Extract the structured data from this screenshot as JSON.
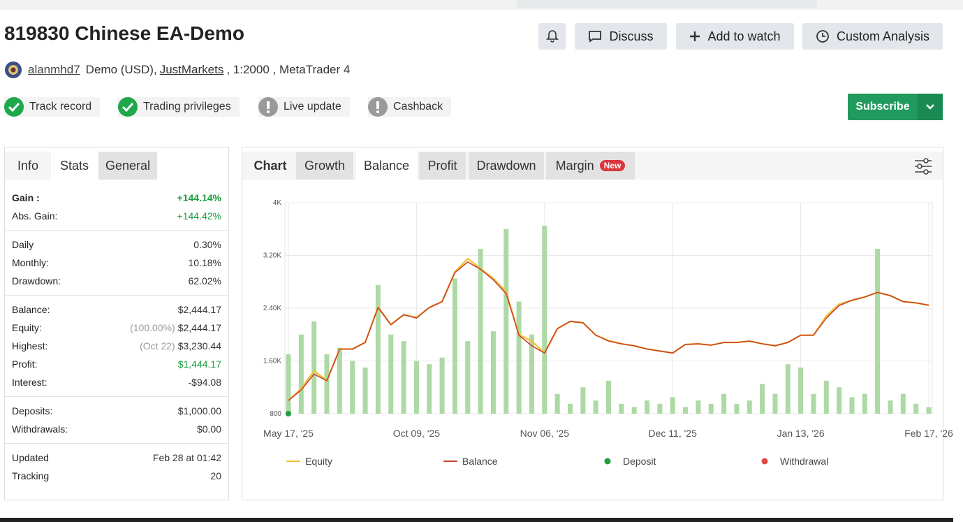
{
  "header": {
    "title": "819830 Chinese EA-Demo",
    "buttons": [
      "Discuss",
      "Add to watch",
      "Custom Analysis"
    ]
  },
  "account": {
    "user": "alanmhd7",
    "type": "Demo (USD),",
    "broker": "JustMarkets",
    "details": ", 1:2000 , MetaTrader 4"
  },
  "badges": [
    {
      "label": "Track record",
      "status": "ok"
    },
    {
      "label": "Trading privileges",
      "status": "ok"
    },
    {
      "label": "Live update",
      "status": "warn"
    },
    {
      "label": "Cashback",
      "status": "warn"
    }
  ],
  "subscribe": "Subscribe",
  "stats": {
    "tabs": [
      "Info",
      "Stats",
      "General"
    ],
    "groups": [
      [
        {
          "label": "Gain :",
          "value": "+144.14%",
          "color": "#1a9e3f"
        },
        {
          "label": "Abs. Gain:",
          "value": "+144.42%",
          "color": "#1a9e3f"
        }
      ],
      [
        {
          "label": "Daily",
          "value": "0.30%"
        },
        {
          "label": "Monthly:",
          "value": "10.18%"
        },
        {
          "label": "Drawdown:",
          "value": "62.02%"
        }
      ],
      [
        {
          "label": "Balance:",
          "value": "$2,444.17"
        },
        {
          "label": "Equity:",
          "note": "(100.00%)",
          "value": "$2,444.17"
        },
        {
          "label": "Highest:",
          "note": "(Oct 22)",
          "value": "$3,230.44"
        },
        {
          "label": "Profit:",
          "value": "$1,444.17",
          "color": "#1a9e3f"
        },
        {
          "label": "Interest:",
          "value": "-$94.08"
        }
      ],
      [
        {
          "label": "Deposits:",
          "value": "$1,000.00"
        },
        {
          "label": "Withdrawals:",
          "value": "$0.00"
        }
      ],
      [
        {
          "label": "Updated",
          "value": "Feb 28 at 01:42"
        },
        {
          "label": "Tracking",
          "value": "20"
        }
      ]
    ]
  },
  "chart_tabs": {
    "tabs": [
      "Chart",
      "Growth",
      "Balance",
      "Profit",
      "Drawdown",
      "Margin"
    ],
    "new_badge": "New"
  },
  "chart_data": {
    "type": "line",
    "categories": [
      "May 17, '25",
      null,
      null,
      null,
      null,
      null,
      null,
      null,
      null,
      null,
      "Oct 09, '25",
      null,
      null,
      null,
      null,
      null,
      null,
      null,
      null,
      null,
      "Nov 06, '25",
      null,
      null,
      null,
      null,
      null,
      null,
      null,
      null,
      null,
      "Dec 11, '25",
      null,
      null,
      null,
      null,
      null,
      null,
      null,
      null,
      null,
      "Jan 13, '26",
      null,
      null,
      null,
      null,
      null,
      null,
      null,
      null,
      null,
      "Feb 17, '26"
    ],
    "ylim": [
      800,
      4000
    ],
    "yticks": [
      800,
      {
        "value": 1600,
        "label": "1.60K"
      },
      {
        "value": 2400,
        "label": "2.40K"
      },
      {
        "value": 3200,
        "label": "3.20K"
      },
      {
        "value": 4000,
        "label": "4K"
      }
    ],
    "grid": true,
    "series": [
      {
        "name": "Equity",
        "type": "line",
        "color": "#f2c23a",
        "values": [
          1000,
          1180,
          1450,
          1300,
          1780,
          1780,
          1880,
          2420,
          2150,
          2300,
          2260,
          2410,
          2500,
          2950,
          3150,
          3000,
          2850,
          2650,
          2000,
          1900,
          1720,
          2090,
          2200,
          2180,
          1990,
          1910,
          1860,
          1830,
          1780,
          1750,
          1720,
          1850,
          1860,
          1840,
          1880,
          1880,
          1900,
          1860,
          1830,
          1880,
          1990,
          1990,
          2280,
          2460,
          2520,
          2570,
          2640,
          2590,
          2500,
          2480,
          2444
        ]
      },
      {
        "name": "Balance",
        "type": "line",
        "color": "#c8442a",
        "values": [
          1000,
          1160,
          1400,
          1300,
          1780,
          1780,
          1880,
          2410,
          2150,
          2300,
          2250,
          2410,
          2500,
          2940,
          3100,
          2990,
          2830,
          2620,
          1990,
          1830,
          1720,
          2090,
          2200,
          2180,
          1990,
          1900,
          1860,
          1830,
          1780,
          1750,
          1720,
          1850,
          1860,
          1840,
          1880,
          1880,
          1900,
          1860,
          1830,
          1880,
          1990,
          1990,
          2250,
          2440,
          2520,
          2570,
          2640,
          2590,
          2500,
          2480,
          2444
        ]
      },
      {
        "type": "bar",
        "color": "#acd9a4",
        "values": [
          1700,
          2000,
          2200,
          1700,
          1800,
          1600,
          1500,
          2750,
          2000,
          1900,
          1600,
          1550,
          1650,
          2850,
          1900,
          3300,
          2050,
          3600,
          2500,
          2000,
          3650,
          1100,
          950,
          1200,
          1000,
          1300,
          950,
          900,
          1000,
          950,
          1050,
          900,
          1000,
          950,
          1100,
          950,
          1000,
          1250,
          1100,
          1550,
          1500,
          1100,
          1300,
          1200,
          1050,
          1100,
          3300,
          1000,
          1100,
          950,
          900
        ]
      },
      {
        "name": "Deposit",
        "type": "scatter",
        "color": "#1e9e3e",
        "values": [
          800,
          null,
          null,
          null,
          null,
          null,
          null,
          null,
          null,
          null,
          null,
          null,
          null,
          null,
          null,
          null,
          null,
          null,
          null,
          null,
          null,
          null,
          null,
          null,
          null,
          null,
          null,
          null,
          null,
          null,
          null,
          null,
          null,
          null,
          null,
          null,
          null,
          null,
          null,
          null,
          null,
          null,
          null,
          null,
          null,
          null,
          null,
          null,
          null,
          null,
          null
        ]
      },
      {
        "name": "Withdrawal",
        "type": "scatter",
        "color": "#e04848",
        "values": [
          null,
          null,
          null,
          null,
          null,
          null,
          null,
          null,
          null,
          null,
          null,
          null,
          null,
          null,
          null,
          null,
          null,
          null,
          null,
          null,
          null,
          null,
          null,
          null,
          null,
          null,
          null,
          null,
          null,
          null,
          null,
          null,
          null,
          null,
          null,
          null,
          null,
          null,
          null,
          null,
          null,
          null,
          null,
          null,
          null,
          null,
          null,
          null,
          null,
          null,
          null
        ]
      }
    ]
  }
}
